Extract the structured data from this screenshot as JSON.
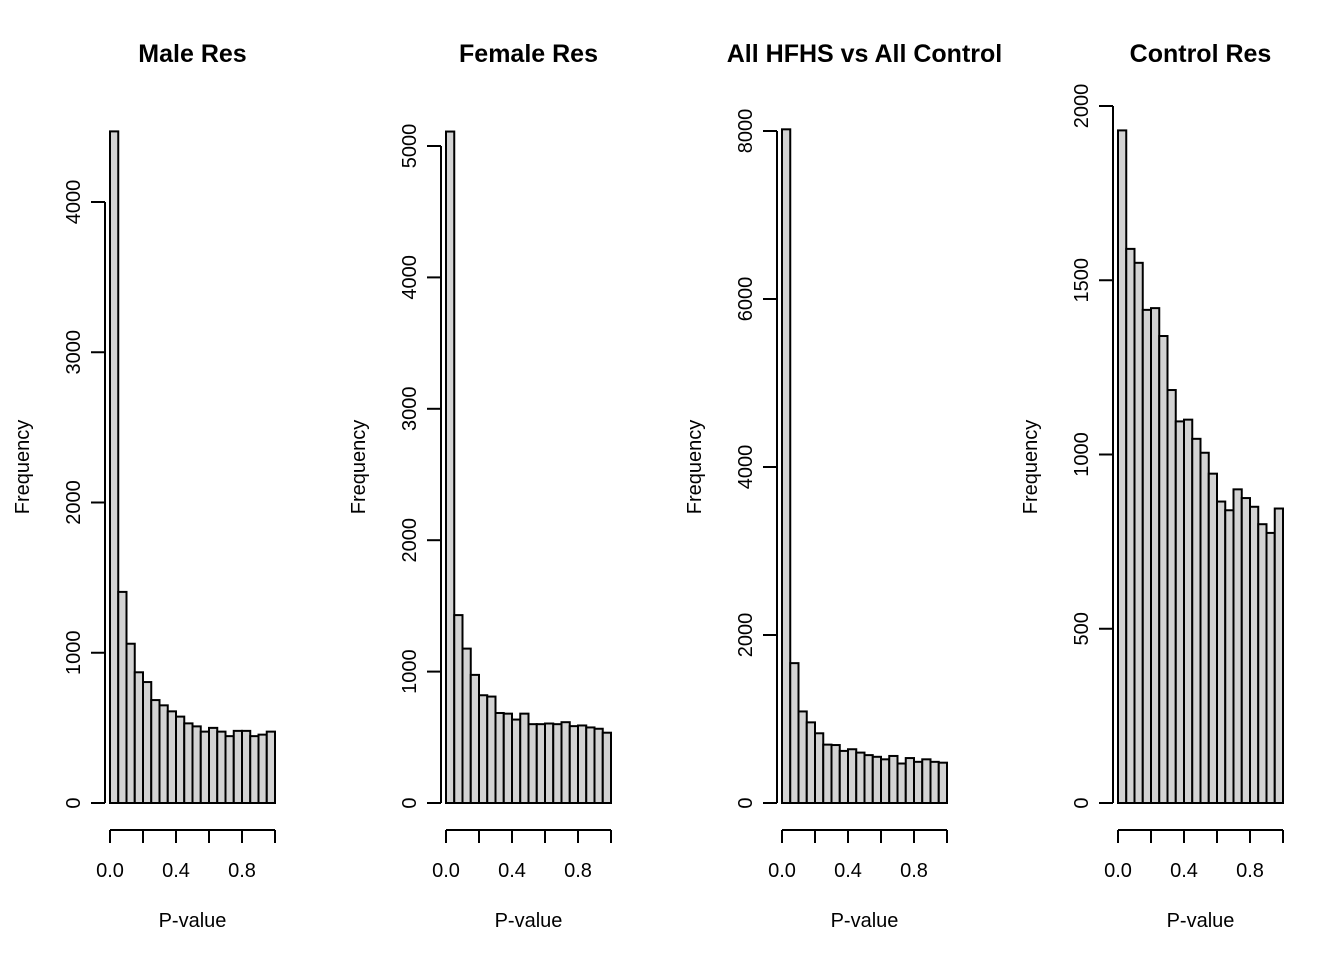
{
  "chart_data": [
    {
      "type": "bar",
      "title": "Male Res",
      "xlabel": "P-value",
      "ylabel": "Frequency",
      "bin_edges": [
        0,
        0.05,
        0.1,
        0.15,
        0.2,
        0.25,
        0.3,
        0.35,
        0.4,
        0.45,
        0.5,
        0.55,
        0.6,
        0.65,
        0.7,
        0.75,
        0.8,
        0.85,
        0.9,
        0.95,
        1.0
      ],
      "values": [
        4470,
        1405,
        1060,
        870,
        805,
        685,
        650,
        610,
        575,
        530,
        510,
        475,
        500,
        475,
        445,
        480,
        480,
        445,
        455,
        475
      ],
      "xticks": [
        0.0,
        0.2,
        0.4,
        0.6,
        0.8,
        1.0
      ],
      "xtick_labels": [
        "0.0",
        "",
        "0.4",
        "",
        "0.8",
        ""
      ],
      "yticks": [
        0,
        1000,
        2000,
        3000,
        4000
      ],
      "ytick_labels": [
        "0",
        "1000",
        "2000",
        "3000",
        "4000"
      ],
      "ylim": [
        0,
        4000
      ]
    },
    {
      "type": "bar",
      "title": "Female Res",
      "xlabel": "P-value",
      "ylabel": "Frequency",
      "bin_edges": [
        0,
        0.05,
        0.1,
        0.15,
        0.2,
        0.25,
        0.3,
        0.35,
        0.4,
        0.45,
        0.5,
        0.55,
        0.6,
        0.65,
        0.7,
        0.75,
        0.8,
        0.85,
        0.9,
        0.95,
        1.0
      ],
      "values": [
        5110,
        1430,
        1175,
        975,
        820,
        810,
        685,
        680,
        635,
        680,
        600,
        600,
        605,
        600,
        615,
        585,
        590,
        575,
        565,
        535
      ],
      "xticks": [
        0.0,
        0.2,
        0.4,
        0.6,
        0.8,
        1.0
      ],
      "xtick_labels": [
        "0.0",
        "",
        "0.4",
        "",
        "0.8",
        ""
      ],
      "yticks": [
        0,
        1000,
        2000,
        3000,
        4000,
        5000
      ],
      "ytick_labels": [
        "0",
        "1000",
        "2000",
        "3000",
        "4000",
        "5000"
      ],
      "ylim": [
        0,
        5000
      ]
    },
    {
      "type": "bar",
      "title": "All HFHS vs All Control",
      "xlabel": "P-value",
      "ylabel": "Frequency",
      "bin_edges": [
        0,
        0.05,
        0.1,
        0.15,
        0.2,
        0.25,
        0.3,
        0.35,
        0.4,
        0.45,
        0.5,
        0.55,
        0.6,
        0.65,
        0.7,
        0.75,
        0.8,
        0.85,
        0.9,
        0.95,
        1.0
      ],
      "values": [
        8020,
        1665,
        1090,
        960,
        830,
        695,
        690,
        620,
        640,
        600,
        570,
        550,
        520,
        560,
        470,
        535,
        490,
        520,
        490,
        480
      ],
      "xticks": [
        0.0,
        0.2,
        0.4,
        0.6,
        0.8,
        1.0
      ],
      "xtick_labels": [
        "0.0",
        "",
        "0.4",
        "",
        "0.8",
        ""
      ],
      "yticks": [
        0,
        2000,
        4000,
        6000,
        8000
      ],
      "ytick_labels": [
        "0",
        "2000",
        "4000",
        "6000",
        "8000"
      ],
      "ylim": [
        0,
        8000
      ]
    },
    {
      "type": "bar",
      "title": "Control Res",
      "xlabel": "P-value",
      "ylabel": "Frequency",
      "bin_edges": [
        0,
        0.05,
        0.1,
        0.15,
        0.2,
        0.25,
        0.3,
        0.35,
        0.4,
        0.45,
        0.5,
        0.55,
        0.6,
        0.65,
        0.7,
        0.75,
        0.8,
        0.85,
        0.9,
        0.95,
        1.0
      ],
      "values": [
        1930,
        1590,
        1550,
        1415,
        1420,
        1340,
        1185,
        1095,
        1100,
        1045,
        1005,
        945,
        865,
        840,
        900,
        875,
        850,
        800,
        775,
        845
      ],
      "xticks": [
        0.0,
        0.2,
        0.4,
        0.6,
        0.8,
        1.0
      ],
      "xtick_labels": [
        "0.0",
        "",
        "0.4",
        "",
        "0.8",
        ""
      ],
      "yticks": [
        0,
        500,
        1000,
        1500,
        2000
      ],
      "ytick_labels": [
        "0",
        "500",
        "1000",
        "1500",
        "2000"
      ],
      "ylim": [
        0,
        2000
      ]
    }
  ]
}
